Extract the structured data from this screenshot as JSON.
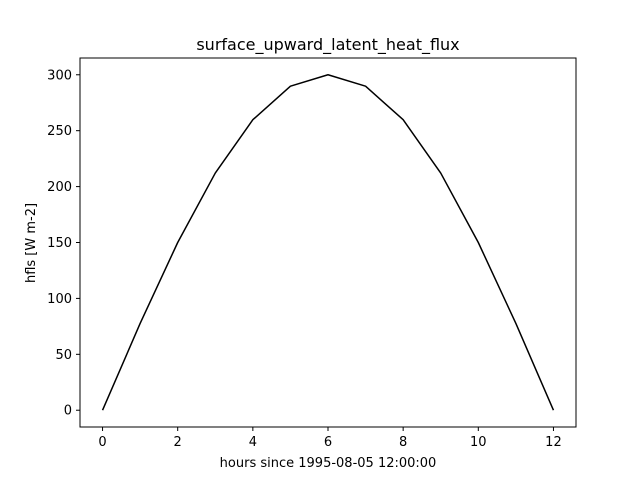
{
  "chart_data": {
    "type": "line",
    "title": "surface_upward_latent_heat_flux",
    "xlabel": "hours since 1995-08-05 12:00:00",
    "ylabel": "hfls [W m-2]",
    "xlim": [
      -0.6,
      12.6
    ],
    "ylim": [
      -15,
      315
    ],
    "xticks": [
      0,
      2,
      4,
      6,
      8,
      10,
      12
    ],
    "yticks": [
      0,
      50,
      100,
      150,
      200,
      250,
      300
    ],
    "grid": false,
    "legend": "none",
    "line_color": "#000000",
    "series": [
      {
        "x": [
          0,
          1,
          2,
          3,
          4,
          5,
          6,
          7,
          8,
          9,
          10,
          11,
          12
        ],
        "values": [
          0,
          77.6,
          150,
          212.1,
          259.8,
          289.8,
          300,
          289.8,
          259.8,
          212.1,
          150,
          77.6,
          0
        ]
      }
    ]
  }
}
